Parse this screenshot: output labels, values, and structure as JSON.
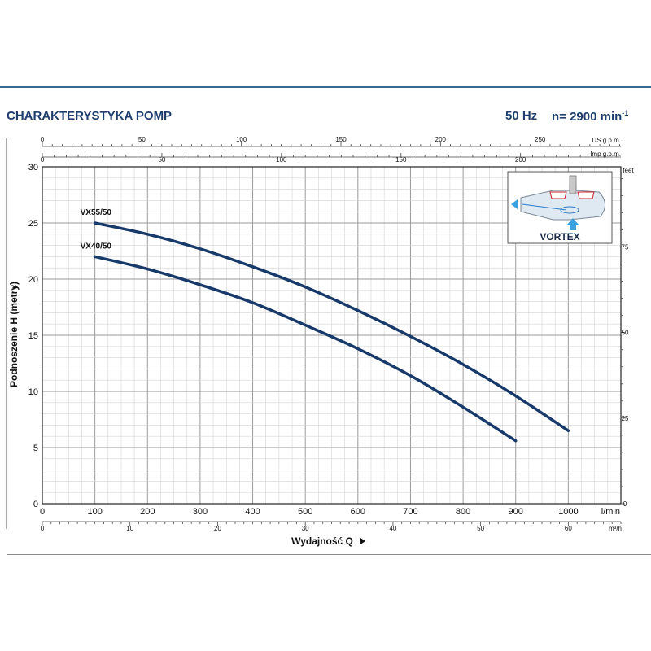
{
  "header": {
    "title": "CHARAKTERYSTYKA POMP",
    "frequency": "50 Hz",
    "speed_label": "n= 2900 min",
    "speed_exponent": "-1"
  },
  "inset": {
    "label": "VORTEX"
  },
  "colors": {
    "curve": "#173a6b",
    "title": "#1f3e6e",
    "grid": "#bdbdbd"
  },
  "chart_data": {
    "type": "line",
    "title": "",
    "xlabel": "Wydajność Q",
    "xunit": "l/min",
    "ylabel": "Podnoszenie H (metry)",
    "xlim": [
      0,
      1100
    ],
    "ylim": [
      0,
      30
    ],
    "x_ticks": [
      0,
      100,
      200,
      300,
      400,
      500,
      600,
      700,
      800,
      900,
      1000
    ],
    "y_ticks": [
      0,
      5,
      10,
      15,
      20,
      25,
      30
    ],
    "secondary_axes": {
      "us_gpm": {
        "unit": "US g.p.m.",
        "ticks": [
          0,
          50,
          100,
          150,
          200,
          250
        ]
      },
      "imp_gpm": {
        "unit": "Imp g.p.m.",
        "ticks": [
          0,
          50,
          100,
          150,
          200
        ]
      },
      "m3h": {
        "unit": "m³/h",
        "ticks": [
          0,
          10,
          20,
          30,
          40,
          50,
          60
        ]
      },
      "feet": {
        "unit": "feet",
        "ticks": [
          0,
          25,
          50,
          75
        ]
      }
    },
    "series": [
      {
        "name": "VX55/50",
        "x": [
          100,
          200,
          300,
          400,
          500,
          600,
          700,
          800,
          900,
          1000
        ],
        "y": [
          25.0,
          24.0,
          22.7,
          21.1,
          19.3,
          17.2,
          14.9,
          12.4,
          9.6,
          6.5
        ]
      },
      {
        "name": "VX40/50",
        "x": [
          100,
          200,
          300,
          400,
          500,
          600,
          700,
          800,
          900
        ],
        "y": [
          22.0,
          20.9,
          19.5,
          17.9,
          15.9,
          13.8,
          11.4,
          8.6,
          5.6
        ]
      }
    ]
  }
}
